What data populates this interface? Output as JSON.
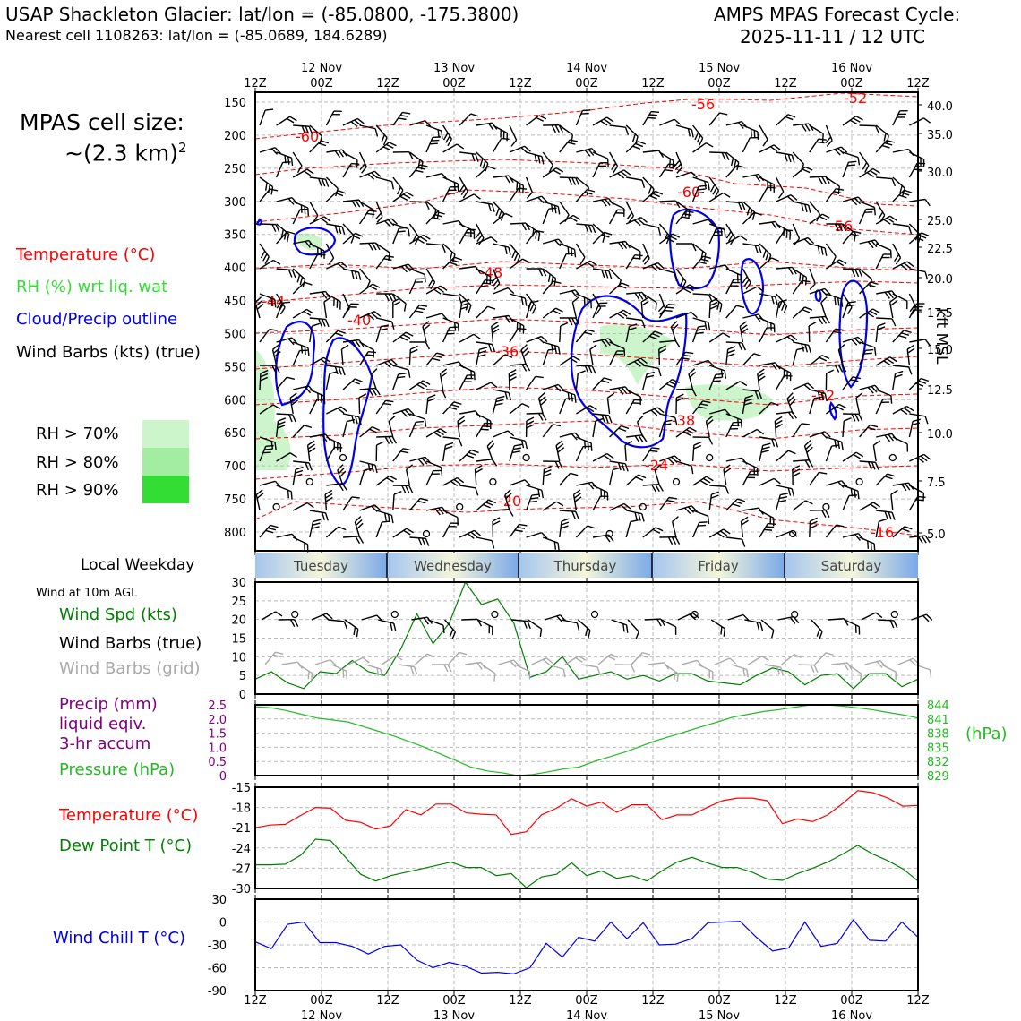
{
  "header": {
    "site_title": "USAP Shackleton Glacier: lat/lon = (-85.0800, -175.3800)",
    "nearest_cell": "Nearest cell 1108263: lat/lon = (-85.0689, 184.6289)",
    "cycle_label": "AMPS MPAS Forecast Cycle:",
    "cycle_value": "2025-11-11 / 12 UTC"
  },
  "legend": {
    "cell_size_label": "MPAS cell size:",
    "cell_size_value": "~(2.3 km)",
    "cell_size_exp": "2",
    "temperature": "Temperature (°C)",
    "rh": "RH (%) wrt liq. wat",
    "cloud": "Cloud/Precip outline",
    "wind_barbs": "Wind Barbs (kts) (true)",
    "rh70": "RH > 70%",
    "rh80": "RH > 80%",
    "rh90": "RH > 90%",
    "weekday_label": "Local Weekday",
    "wind10m_label": "Wind at 10m AGL",
    "wind_spd": "Wind Spd (kts)",
    "wind_barbs_true": "Wind Barbs (true)",
    "wind_barbs_grid": "Wind Barbs (grid)",
    "precip1": "Precip (mm)",
    "precip2": "liquid eqiv.",
    "precip3": "3-hr accum",
    "pressure": "Pressure (hPa)",
    "pressure_unit": "(hPa)",
    "temp2": "Temperature (°C)",
    "dewpoint": "Dew Point T (°C)",
    "windchill": "Wind Chill T (°C)",
    "kft_label": "kft MSL"
  },
  "colors": {
    "temperature": "#ff0000",
    "rh_text": "#33dd33",
    "cloud": "#0000ee",
    "rh70": "#ccf5cc",
    "rh80": "#a3eda3",
    "rh90": "#33dd33",
    "wind_spd": "#008000",
    "grid_barbs": "#aaaaaa",
    "precip": "#800080",
    "pressure": "#22bb22",
    "dewpoint": "#008000",
    "windchill": "#0000ee"
  },
  "chart_data": {
    "type": "line",
    "time_ticks": [
      "12Z",
      "00Z",
      "12Z",
      "00Z",
      "12Z",
      "00Z",
      "12Z",
      "00Z",
      "12Z",
      "00Z",
      "12Z"
    ],
    "date_labels": [
      "12 Nov",
      "13 Nov",
      "14 Nov",
      "15 Nov",
      "16 Nov"
    ],
    "weekdays": [
      "Tuesday",
      "Wednesday",
      "Thursday",
      "Friday",
      "Saturday"
    ],
    "sounding": {
      "pressure_ticks": [
        "150",
        "200",
        "250",
        "300",
        "350",
        "400",
        "450",
        "500",
        "550",
        "600",
        "650",
        "700",
        "750",
        "800"
      ],
      "kft_ticks": [
        "40.0",
        "35.0",
        "30.0",
        "25.0",
        "22.5",
        "20.0",
        "17.5",
        "15.0",
        "12.5",
        "10.0",
        "7.5",
        "5.0"
      ],
      "temp_labels": [
        "-60",
        "-56",
        "-52",
        "-60",
        "-56",
        "-48",
        "-44",
        "-40",
        "-36",
        "-32",
        "-38",
        "-24",
        "-20",
        "-16"
      ]
    },
    "wind10m": {
      "ylim": [
        0,
        30
      ],
      "yticks": [
        "0",
        "5",
        "10",
        "15",
        "20",
        "25",
        "30"
      ],
      "speed_kts": [
        4,
        6,
        3,
        1.5,
        6,
        5.5,
        9,
        6,
        5,
        12,
        21.5,
        13.5,
        19,
        30,
        24,
        25.5,
        19,
        4.5,
        6,
        10,
        4,
        5,
        6,
        4,
        5,
        3.5,
        5.5,
        5.5,
        3.5,
        3,
        2.5,
        5,
        7,
        6,
        2.5,
        5,
        5.5,
        1.5,
        5.5,
        5.5,
        2,
        4
      ]
    },
    "pressure": {
      "hpa_ticks": [
        "844",
        "841",
        "838",
        "835",
        "832",
        "829"
      ],
      "precip_ticks": [
        "2.5",
        "2.0",
        "1.5",
        "1.0",
        "0.5",
        "0"
      ],
      "ylim_hpa": [
        829,
        844
      ],
      "pressure_hpa": [
        843.6,
        843.4,
        842.8,
        842.0,
        841.2,
        840.8,
        840.4,
        839.4,
        838.4,
        837.4,
        836.2,
        835.0,
        833.6,
        832.2,
        830.8,
        830.0,
        829.6,
        829.0,
        829.2,
        829.8,
        830.4,
        830.8,
        832.0,
        833.0,
        834.0,
        835.2,
        836.4,
        837.4,
        838.4,
        839.4,
        840.4,
        841.4,
        842.0,
        842.6,
        843.0,
        843.5,
        844.0,
        844.0,
        843.8,
        843.4,
        843.0,
        842.4,
        841.9,
        841.2
      ]
    },
    "temperature": {
      "ylim": [
        -30,
        -15
      ],
      "yticks": [
        "-15",
        "-18",
        "-21",
        "-24",
        "-27",
        "-30"
      ],
      "temp_c": [
        -21,
        -20.6,
        -20.5,
        -19.2,
        -18,
        -18.1,
        -19.9,
        -20.2,
        -21.2,
        -20.7,
        -18.3,
        -19.1,
        -17.5,
        -17.5,
        -18.8,
        -19,
        -19.1,
        -22,
        -21.6,
        -19.1,
        -18.1,
        -16.7,
        -17.8,
        -17.2,
        -18.7,
        -17.6,
        -17.6,
        -19.8,
        -19.1,
        -19.1,
        -18,
        -17,
        -16.6,
        -16.6,
        -17,
        -20.4,
        -19.7,
        -20.1,
        -19.1,
        -17.4,
        -15.5,
        -15.8,
        -16.6,
        -17.8,
        -17.7
      ],
      "dewpoint_c": [
        -26.5,
        -26.5,
        -26.4,
        -25.1,
        -22.7,
        -22.9,
        -25.4,
        -27.9,
        -28.9,
        -28.1,
        -27.6,
        -27.1,
        -26.6,
        -26.1,
        -26.9,
        -26.9,
        -28.1,
        -27.8,
        -29.9,
        -28.3,
        -27.9,
        -26.2,
        -28.1,
        -27.4,
        -28.5,
        -28.1,
        -28.9,
        -27.4,
        -26.1,
        -25.4,
        -26.2,
        -26.9,
        -26.9,
        -27.6,
        -28.6,
        -28.8,
        -27.8,
        -27.0,
        -26.1,
        -24.9,
        -23.6,
        -24.9,
        -25.9,
        -27.1,
        -28.9
      ]
    },
    "windchill": {
      "ylim": [
        -90,
        30
      ],
      "yticks": [
        "30",
        "0",
        "-30",
        "-60",
        "-90"
      ],
      "windchill_c": [
        -26,
        -35,
        -3,
        0,
        -27,
        -27,
        -32,
        -42,
        -32,
        -30,
        -50,
        -60,
        -53,
        -58,
        -67,
        -66,
        -68,
        -60,
        -28,
        -46,
        -20,
        -25,
        0,
        -22,
        -1,
        -30,
        -29,
        -22,
        -1,
        0,
        1,
        -20,
        -38,
        -34,
        0,
        -32,
        -28,
        3,
        -24,
        -25,
        0,
        -20
      ]
    }
  }
}
